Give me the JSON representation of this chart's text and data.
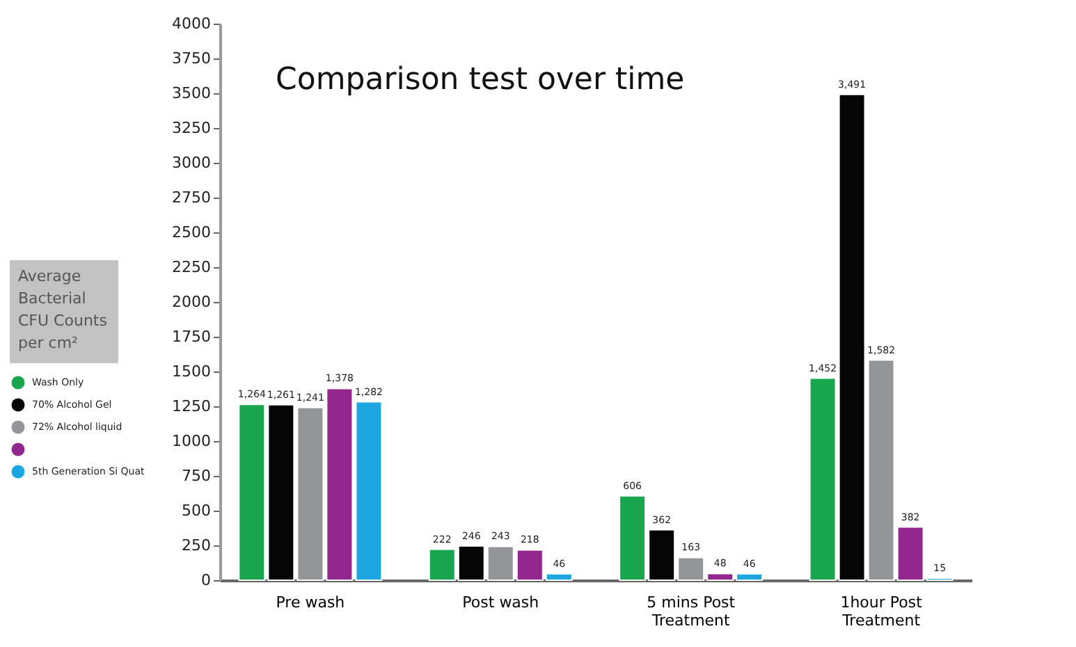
{
  "chart_data": {
    "type": "bar",
    "title": "Comparison test over time",
    "ylabel": "Average Bacterial CFU Counts per cm²",
    "categories": [
      "Pre wash",
      "Post wash",
      "5 mins Post Treatment",
      "1hour Post Treatment"
    ],
    "series": [
      {
        "name": "Wash Only",
        "color": "#1aa64f",
        "values": [
          1264,
          222,
          606,
          1452
        ],
        "value_labels": [
          "1,264",
          "222",
          "606",
          "1,452"
        ]
      },
      {
        "name": "70% Alcohol Gel",
        "color": "#060606",
        "values": [
          1261,
          246,
          362,
          3491
        ],
        "value_labels": [
          "1,261",
          "246",
          "362",
          "3,491"
        ]
      },
      {
        "name": "72% Alcohol liquid",
        "color": "#939598",
        "values": [
          1241,
          243,
          163,
          1582
        ],
        "value_labels": [
          "1,241",
          "243",
          "163",
          "1,582"
        ]
      },
      {
        "color": "#92278f",
        "values": [
          1378,
          218,
          48,
          382
        ],
        "value_labels": [
          "1,378",
          "218",
          "48",
          "382"
        ]
      },
      {
        "name": "5th Generation Si Quat",
        "color": "#1ba6e0",
        "values": [
          1282,
          46,
          46,
          15
        ],
        "value_labels": [
          "1,282",
          "46",
          "46",
          "15"
        ]
      }
    ],
    "ylim": [
      0,
      4000
    ],
    "yticks": [
      0,
      250,
      500,
      750,
      1000,
      1250,
      1500,
      1750,
      2000,
      2250,
      2500,
      2750,
      3000,
      3250,
      3500,
      3750,
      4000
    ],
    "grid": false,
    "legend": "left"
  }
}
